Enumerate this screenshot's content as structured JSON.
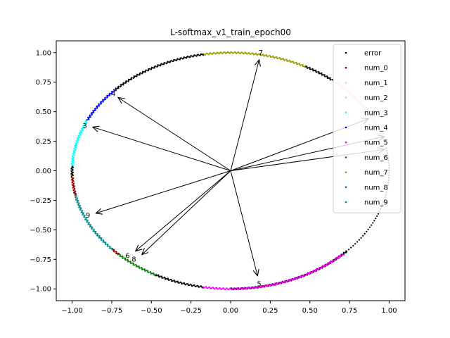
{
  "chart_data": {
    "type": "scatter",
    "title": "L-softmax_v1_train_epoch00",
    "xlim": [
      -1.1,
      1.1
    ],
    "ylim": [
      -1.1,
      1.1
    ],
    "xticks": [
      -1.0,
      -0.75,
      -0.5,
      -0.25,
      0.0,
      0.25,
      0.5,
      0.75,
      1.0
    ],
    "yticks": [
      -1.0,
      -0.75,
      -0.5,
      -0.25,
      0.0,
      0.25,
      0.5,
      0.75,
      1.0
    ],
    "xtick_labels": [
      "−1.00",
      "−0.75",
      "−0.50",
      "−0.25",
      "0.00",
      "0.25",
      "0.50",
      "0.75",
      "1.00"
    ],
    "ytick_labels": [
      "−1.00",
      "−0.75",
      "−0.50",
      "−0.25",
      "0.00",
      "0.25",
      "0.50",
      "0.75",
      "1.00"
    ],
    "grid": false,
    "legend_position": "top-right",
    "legend": [
      {
        "name": "error",
        "color": "#000000"
      },
      {
        "name": "num_0",
        "color": "#8b0000"
      },
      {
        "name": "num_1",
        "color": "#ffc0cb"
      },
      {
        "name": "num_2",
        "color": "#90ee90"
      },
      {
        "name": "num_3",
        "color": "#00ffff"
      },
      {
        "name": "num_4",
        "color": "#0000ff"
      },
      {
        "name": "num_5",
        "color": "#ff00ff"
      },
      {
        "name": "num_6",
        "color": "#a52a2a"
      },
      {
        "name": "num_7",
        "color": "#9b9b00"
      },
      {
        "name": "num_8",
        "color": "#008000"
      },
      {
        "name": "num_9",
        "color": "#008b8b"
      }
    ],
    "arcs": [
      {
        "series": "error",
        "theta_start": -90,
        "theta_end": -43
      },
      {
        "series": "error",
        "theta_start": -43,
        "theta_end": 12,
        "sparse": true
      },
      {
        "series": "num_2",
        "theta_start": 12,
        "theta_end": 22
      },
      {
        "series": "num_1",
        "theta_start": 22,
        "theta_end": 50
      },
      {
        "series": "error",
        "theta_start": 50,
        "theta_end": 62
      },
      {
        "series": "num_7",
        "theta_start": 62,
        "theta_end": 100
      },
      {
        "series": "error",
        "theta_start": 100,
        "theta_end": 137
      },
      {
        "series": "num_4",
        "theta_start": 137,
        "theta_end": 155
      },
      {
        "series": "num_3",
        "theta_start": 155,
        "theta_end": 178
      },
      {
        "series": "error",
        "theta_start": 178,
        "theta_end": 183
      },
      {
        "series": "num_0",
        "theta_start": 183,
        "theta_end": 192
      },
      {
        "series": "num_9",
        "theta_start": 192,
        "theta_end": 222
      },
      {
        "series": "num_0",
        "theta_start": 222,
        "theta_end": 225
      },
      {
        "series": "num_8",
        "theta_start": 225,
        "theta_end": 242
      },
      {
        "series": "error",
        "theta_start": 242,
        "theta_end": 260
      },
      {
        "series": "num_5",
        "theta_start": 260,
        "theta_end": 315
      }
    ],
    "vectors": [
      {
        "label": "0",
        "x": 0.97,
        "y": 0.29
      },
      {
        "label": "1",
        "x": 0.87,
        "y": 0.44
      },
      {
        "label": "2",
        "x": 0.97,
        "y": 0.18
      },
      {
        "label": "3",
        "x": -0.87,
        "y": 0.37
      },
      {
        "label": "4",
        "x": -0.71,
        "y": 0.62
      },
      {
        "label": "5",
        "x": 0.17,
        "y": -0.89
      },
      {
        "label": "6",
        "x": -0.6,
        "y": -0.68
      },
      {
        "label": "7",
        "x": 0.18,
        "y": 0.94
      },
      {
        "label": "8",
        "x": -0.56,
        "y": -0.71
      },
      {
        "label": "9",
        "x": -0.85,
        "y": -0.36
      }
    ],
    "vector_labels": [
      {
        "label": "7",
        "x": 0.19,
        "y": 1.0
      },
      {
        "label": "4",
        "x": -0.74,
        "y": 0.65
      },
      {
        "label": "3",
        "x": -0.92,
        "y": 0.38
      },
      {
        "label": "9",
        "x": -0.9,
        "y": -0.38
      },
      {
        "label": "6",
        "x": -0.65,
        "y": -0.72
      },
      {
        "label": "8",
        "x": -0.61,
        "y": -0.75
      },
      {
        "label": "5",
        "x": 0.18,
        "y": -0.96
      }
    ]
  }
}
